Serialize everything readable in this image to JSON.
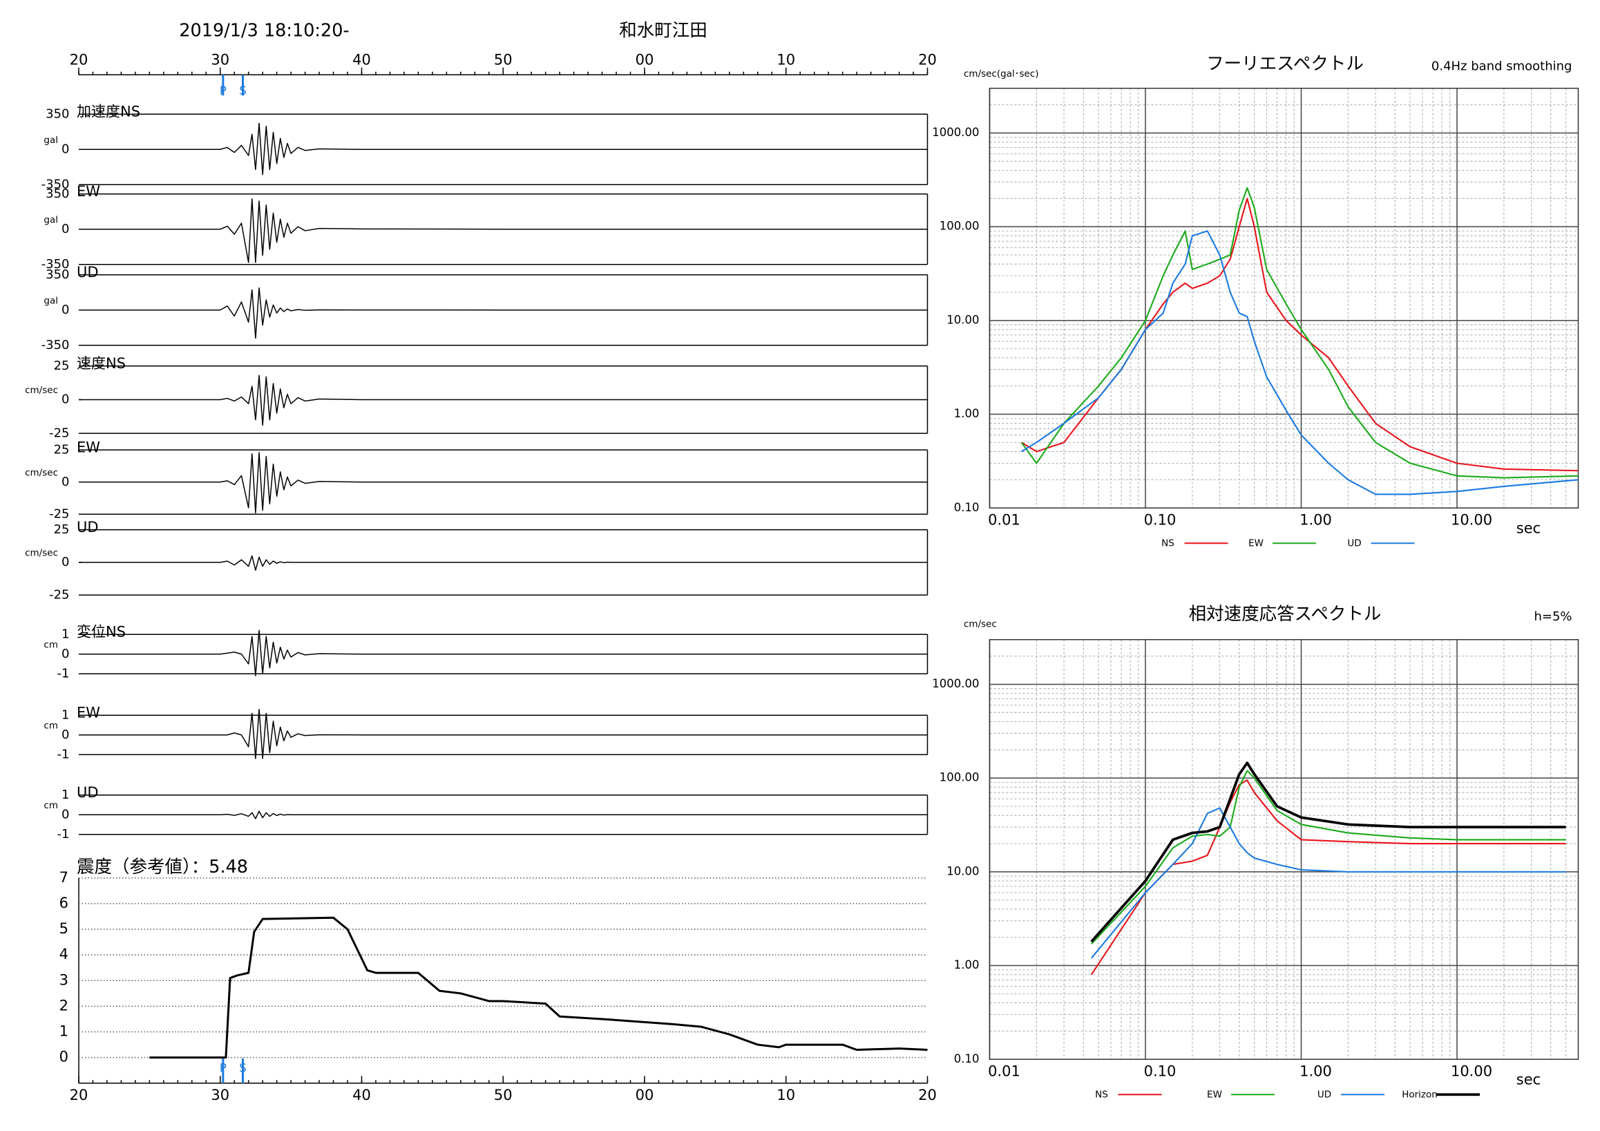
{
  "header": {
    "date": "2019/1/3 18:10:20-",
    "station": "和水町江田"
  },
  "chart_data": [
    {
      "type": "waveforms",
      "x": [
        20,
        30,
        30.5,
        31,
        31.5,
        32,
        32.25,
        32.5,
        32.75,
        33,
        33.25,
        33.5,
        33.75,
        34,
        34.25,
        34.5,
        34.75,
        35,
        35.5,
        36,
        37,
        40,
        50,
        80
      ],
      "xlim": [
        20,
        80
      ],
      "xticks": [
        20,
        30,
        40,
        50,
        {
          "value": 60,
          "label": "00"
        },
        {
          "value": 70,
          "label": "10"
        },
        {
          "value": 80,
          "label": "20"
        }
      ],
      "annotations": [
        {
          "label": "P",
          "x": 30.2
        },
        {
          "label": "S",
          "x": 31.6
        }
      ],
      "panels": [
        {
          "name": "加速度NS",
          "unit": "gal",
          "ylim": [
            -350,
            350
          ],
          "yticks": [
            -350,
            0,
            350
          ],
          "values": [
            0,
            0,
            20,
            -30,
            40,
            -60,
            150,
            -200,
            260,
            -250,
            230,
            -200,
            170,
            -140,
            110,
            -80,
            60,
            -40,
            20,
            -10,
            5,
            0,
            0,
            0
          ]
        },
        {
          "name": "EW",
          "unit": "gal",
          "ylim": [
            -350,
            350
          ],
          "yticks": [
            -350,
            0,
            350
          ],
          "values": [
            0,
            0,
            30,
            -50,
            60,
            -330,
            300,
            -330,
            280,
            -260,
            240,
            -200,
            160,
            -130,
            100,
            -80,
            60,
            -40,
            25,
            -15,
            8,
            3,
            0,
            0
          ]
        },
        {
          "name": "UD",
          "unit": "gal",
          "ylim": [
            -350,
            350
          ],
          "yticks": [
            -350,
            0,
            350
          ],
          "values": [
            0,
            0,
            40,
            -60,
            80,
            -120,
            200,
            -280,
            220,
            -150,
            100,
            -70,
            50,
            -30,
            20,
            -15,
            10,
            -8,
            5,
            -3,
            2,
            1,
            0,
            0
          ]
        },
        {
          "name": "速度NS",
          "unit": "cm/sec",
          "ylim": [
            -25,
            25
          ],
          "yticks": [
            -25,
            0,
            25
          ],
          "values": [
            0,
            0,
            1,
            -1,
            2,
            -3,
            10,
            -15,
            18,
            -19,
            17,
            -15,
            12,
            -10,
            8,
            -6,
            4,
            -3,
            1.5,
            -1,
            0.5,
            0,
            0,
            0
          ]
        },
        {
          "name": "EW",
          "unit": "cm/sec",
          "ylim": [
            -25,
            25
          ],
          "yticks": [
            -25,
            0,
            25
          ],
          "values": [
            0,
            0,
            1,
            -2,
            5,
            -20,
            22,
            -24,
            23,
            -22,
            20,
            -17,
            14,
            -11,
            8,
            -6,
            4,
            -3,
            1.5,
            -1,
            0.5,
            0,
            0,
            0
          ]
        },
        {
          "name": "UD",
          "unit": "cm/sec",
          "ylim": [
            -25,
            25
          ],
          "yticks": [
            -25,
            0,
            25
          ],
          "values": [
            0,
            0,
            1,
            -2,
            2,
            -3,
            5,
            -6,
            4,
            -3,
            2,
            -1.5,
            1,
            -0.7,
            0.5,
            -0.3,
            0.2,
            0,
            0,
            0,
            0,
            0,
            0,
            0
          ]
        },
        {
          "name": "変位NS",
          "unit": "cm",
          "ylim": [
            -1,
            1
          ],
          "yticks": [
            -1,
            0,
            1
          ],
          "values": [
            0,
            0,
            0.05,
            0.1,
            0,
            -0.5,
            0.9,
            -1.1,
            1.2,
            -1,
            0.9,
            -0.7,
            0.6,
            -0.45,
            0.35,
            -0.25,
            0.2,
            -0.15,
            0.08,
            -0.04,
            0.02,
            0,
            0,
            0
          ]
        },
        {
          "name": "EW",
          "unit": "cm",
          "ylim": [
            -1,
            1
          ],
          "yticks": [
            -1,
            0,
            1
          ],
          "values": [
            0,
            0,
            0,
            0.1,
            0,
            -0.6,
            1.1,
            -1.2,
            1.3,
            -1.2,
            1.1,
            -0.9,
            0.7,
            -0.55,
            0.4,
            -0.3,
            0.2,
            -0.12,
            0.06,
            -0.03,
            0.01,
            0,
            0,
            0
          ]
        },
        {
          "name": "UD",
          "unit": "cm",
          "ylim": [
            -1,
            1
          ],
          "yticks": [
            -1,
            0,
            1
          ],
          "values": [
            0,
            0,
            0.02,
            -0.03,
            0.05,
            -0.08,
            0.1,
            -0.2,
            0.18,
            -0.15,
            0.1,
            -0.08,
            0.06,
            -0.04,
            0.03,
            -0.02,
            0.01,
            0,
            0,
            0,
            0,
            0,
            0,
            0
          ]
        }
      ]
    },
    {
      "type": "line",
      "title": "震度（参考値）：5.48",
      "color": "#000000",
      "grid": true,
      "x": [
        25,
        30.4,
        30.7,
        31.2,
        32,
        32.4,
        33,
        38,
        39,
        40.4,
        41,
        44,
        45.5,
        47,
        49,
        50,
        53,
        54,
        57,
        62,
        64,
        66,
        68,
        69.5,
        70,
        74,
        75,
        78,
        80
      ],
      "values": [
        0,
        0,
        3.1,
        3.2,
        3.3,
        4.9,
        5.4,
        5.45,
        5,
        3.4,
        3.3,
        3.3,
        2.6,
        2.5,
        2.2,
        2.2,
        2.1,
        1.6,
        1.5,
        1.3,
        1.2,
        0.9,
        0.5,
        0.4,
        0.5,
        0.5,
        0.3,
        0.35,
        0.3
      ],
      "xlim": [
        20,
        80
      ],
      "xticks": [
        20,
        30,
        40,
        50,
        {
          "value": 60,
          "label": "00"
        },
        {
          "value": 70,
          "label": "10"
        },
        {
          "value": 80,
          "label": "20"
        }
      ],
      "ylim": [
        -1,
        7
      ],
      "yticks": [
        0,
        1,
        2,
        3,
        4,
        5,
        6,
        7
      ],
      "annotations": [
        {
          "label": "P",
          "x": 30.2
        },
        {
          "label": "S",
          "x": 31.6
        }
      ]
    },
    {
      "type": "spectrum",
      "title": "フーリエスペクトル",
      "subtitle": "0.4Hz band smoothing",
      "y_label": "cm/sec(gal･sec)",
      "x_label": "sec",
      "log_x": true,
      "log_y": true,
      "grid": true,
      "legend": "bottom",
      "xlim": [
        0.01,
        60
      ],
      "ylim": [
        0.1,
        3000
      ],
      "xticks": [
        0.01,
        {
          "value": 0.1,
          "label": "0.10"
        },
        {
          "value": 1,
          "label": "1.00"
        },
        {
          "value": 10,
          "label": "10.00"
        }
      ],
      "yticks": [
        {
          "value": 0.1,
          "label": "0.10"
        },
        {
          "value": 1,
          "label": "1.00"
        },
        {
          "value": 10,
          "label": "10.00"
        },
        {
          "value": 100,
          "label": "100.00"
        },
        {
          "value": 1000,
          "label": "1000.00"
        }
      ],
      "x": [
        0.016,
        0.02,
        0.03,
        0.05,
        0.07,
        0.1,
        0.13,
        0.15,
        0.18,
        0.2,
        0.25,
        0.3,
        0.35,
        0.4,
        0.45,
        0.5,
        0.6,
        0.8,
        1,
        1.5,
        2,
        3,
        5,
        10,
        20,
        60
      ],
      "series": [
        {
          "name": "NS",
          "color": "#e8141a",
          "values": [
            0.5,
            0.4,
            0.5,
            1.5,
            3,
            8,
            15,
            20,
            25,
            22,
            25,
            30,
            45,
            100,
            200,
            100,
            20,
            10,
            7,
            4,
            2,
            0.8,
            0.45,
            0.3,
            0.26,
            0.25
          ]
        },
        {
          "name": "EW",
          "color": "#1aaa1a",
          "values": [
            0.5,
            0.3,
            0.8,
            2,
            4,
            10,
            30,
            50,
            90,
            35,
            40,
            45,
            50,
            150,
            260,
            160,
            35,
            15,
            8,
            3,
            1.2,
            0.5,
            0.3,
            0.22,
            0.21,
            0.22
          ]
        },
        {
          "name": "UD",
          "color": "#1a7ae0",
          "values": [
            0.4,
            0.5,
            0.8,
            1.5,
            3,
            8,
            12,
            25,
            40,
            80,
            90,
            50,
            20,
            12,
            11,
            6,
            2.5,
            1.1,
            0.6,
            0.3,
            0.2,
            0.14,
            0.14,
            0.15,
            0.17,
            0.2
          ]
        }
      ]
    },
    {
      "type": "spectrum",
      "title": "相対速度応答スペクトル",
      "subtitle": "h=5%",
      "y_label": "cm/sec",
      "x_label": "sec",
      "log_x": true,
      "log_y": true,
      "grid": true,
      "legend": "bottom",
      "xlim": [
        0.01,
        60
      ],
      "ylim": [
        0.1,
        3000
      ],
      "xticks": [
        0.01,
        {
          "value": 0.1,
          "label": "0.10"
        },
        {
          "value": 1,
          "label": "1.00"
        },
        {
          "value": 10,
          "label": "10.00"
        }
      ],
      "yticks": [
        {
          "value": 0.1,
          "label": "0.10"
        },
        {
          "value": 1,
          "label": "1.00"
        },
        {
          "value": 10,
          "label": "10.00"
        },
        {
          "value": 100,
          "label": "100.00"
        },
        {
          "value": 1000,
          "label": "1000.00"
        }
      ],
      "x": [
        0.045,
        0.1,
        0.15,
        0.2,
        0.25,
        0.3,
        0.35,
        0.4,
        0.45,
        0.5,
        0.7,
        1,
        2,
        5,
        10,
        50
      ],
      "series": [
        {
          "name": "NS",
          "color": "#e8141a",
          "values": [
            0.8,
            6,
            12,
            13,
            15,
            30,
            55,
            85,
            95,
            70,
            35,
            22,
            21,
            20,
            20,
            20
          ]
        },
        {
          "name": "EW",
          "color": "#1aaa1a",
          "values": [
            1.7,
            7,
            18,
            24,
            25,
            24,
            30,
            80,
            120,
            100,
            45,
            32,
            26,
            23,
            22,
            22
          ]
        },
        {
          "name": "UD",
          "color": "#1a7ae0",
          "values": [
            1.2,
            6,
            12,
            20,
            42,
            48,
            30,
            20,
            16,
            14,
            12,
            10.5,
            10,
            10,
            10,
            10
          ]
        },
        {
          "name": "Horizon",
          "color": "#000000",
          "values": [
            1.8,
            8,
            22,
            26,
            27,
            30,
            60,
            110,
            145,
            110,
            50,
            38,
            32,
            30,
            30,
            30
          ]
        }
      ]
    }
  ]
}
